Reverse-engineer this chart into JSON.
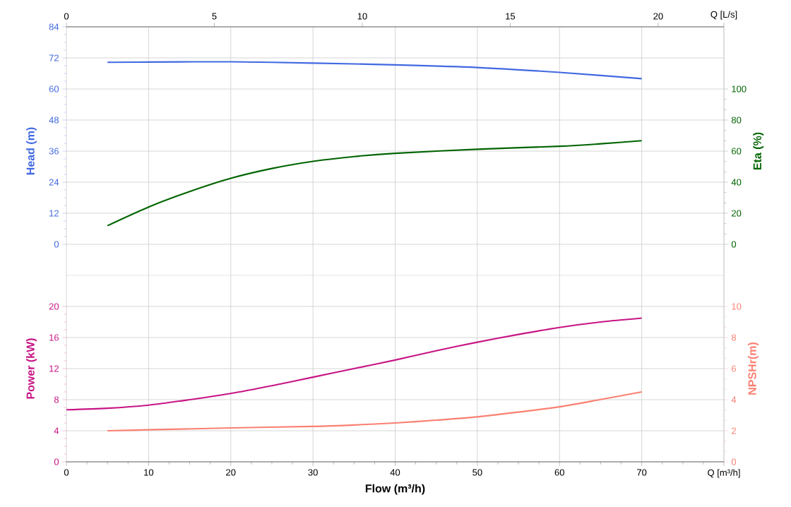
{
  "chart_data": [
    {
      "type": "line",
      "ylabel": "Head (m)",
      "y2label": "Eta (%)",
      "xlim": [
        0,
        80
      ],
      "xticks": [
        0,
        10,
        20,
        30,
        40,
        50,
        60,
        70,
        80
      ],
      "tick_labels": "y",
      "x2lim": [
        0,
        22.222
      ],
      "x2ticks": [
        0,
        5,
        10,
        15,
        20,
        {
          "value": 22.222,
          "label": "Q [L/s]"
        }
      ],
      "ylim": [
        -12,
        84
      ],
      "yticks": [
        0,
        12,
        24,
        36,
        48,
        60,
        72,
        84
      ],
      "y2lim": [
        -20,
        140
      ],
      "y2ticks": [
        0,
        20,
        40,
        60,
        80,
        100
      ],
      "grid": true,
      "series": [
        {
          "color": "#4169e1",
          "x": [
            5,
            10,
            20,
            30,
            40,
            50,
            60,
            70
          ],
          "values": [
            70.3,
            70.4,
            70.5,
            70.0,
            69.3,
            68.3,
            66.4,
            64.0
          ]
        },
        {
          "color": "#006400",
          "axis": "y2",
          "x": [
            5,
            10,
            15,
            20,
            25,
            30,
            35,
            40,
            50,
            60,
            65,
            70
          ],
          "values": [
            12,
            24,
            34,
            42.5,
            48.8,
            53.4,
            56.5,
            58.6,
            61.2,
            63.1,
            64.7,
            66.7
          ]
        }
      ]
    },
    {
      "type": "line",
      "xlabel": "Flow (m³/h)",
      "ylabel": "Power (kW)",
      "y2label": "NPSHr(m)",
      "xlim": [
        0,
        80
      ],
      "xticks": [
        0,
        10,
        20,
        30,
        40,
        50,
        60,
        70,
        {
          "value": 80,
          "label": "Q [m³/h]"
        }
      ],
      "ylim": [
        0,
        24
      ],
      "yticks": [
        0,
        4,
        8,
        12,
        16,
        20
      ],
      "y2lim": [
        0,
        12
      ],
      "y2ticks": [
        0,
        2,
        4,
        6,
        8,
        10
      ],
      "grid": true,
      "series": [
        {
          "color": "#c71585",
          "x": [
            0,
            5,
            10,
            15,
            20,
            25,
            30,
            35,
            40,
            45,
            50,
            55,
            60,
            65,
            70
          ],
          "values": [
            6.7,
            6.9,
            7.3,
            8.0,
            8.8,
            9.8,
            10.9,
            12.0,
            13.1,
            14.3,
            15.4,
            16.4,
            17.3,
            18.0,
            18.5
          ]
        },
        {
          "color": "#fa8072",
          "axis": "y2",
          "x": [
            5,
            10,
            20,
            30,
            35,
            40,
            45,
            50,
            55,
            60,
            65,
            70
          ],
          "values": [
            2.0,
            2.06,
            2.18,
            2.28,
            2.37,
            2.5,
            2.68,
            2.89,
            3.2,
            3.54,
            4.01,
            4.5
          ]
        }
      ]
    }
  ]
}
